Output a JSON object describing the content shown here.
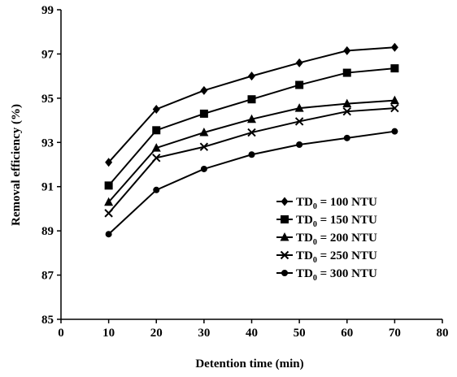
{
  "chart_data": {
    "type": "line",
    "xlabel": "Detention time (min)",
    "ylabel": "Removal efficiency (%)",
    "xlim": [
      0,
      80
    ],
    "ylim": [
      85,
      99
    ],
    "xticks": [
      "0",
      "10",
      "20",
      "30",
      "40",
      "50",
      "60",
      "70",
      "80"
    ],
    "yticks": [
      "85",
      "87",
      "89",
      "91",
      "93",
      "95",
      "97",
      "99"
    ],
    "grid": false,
    "legend_position": "bottom-right",
    "x": [
      10,
      20,
      30,
      40,
      50,
      60,
      70
    ],
    "series": [
      {
        "name": "TD",
        "sub": "0",
        "suffix": " = 100 NTU",
        "marker": "diamond",
        "values": [
          92.1,
          94.5,
          95.35,
          96.0,
          96.6,
          97.15,
          97.3
        ]
      },
      {
        "name": "TD",
        "sub": "0",
        "suffix": " = 150 NTU",
        "marker": "square",
        "values": [
          91.05,
          93.55,
          94.3,
          94.95,
          95.6,
          96.15,
          96.35
        ]
      },
      {
        "name": "TD",
        "sub": "0",
        "suffix": " = 200 NTU",
        "marker": "triangle",
        "values": [
          90.3,
          92.75,
          93.45,
          94.05,
          94.55,
          94.75,
          94.9
        ]
      },
      {
        "name": "TD",
        "sub": "0",
        "suffix": " = 250 NTU",
        "marker": "cross",
        "values": [
          89.8,
          92.3,
          92.8,
          93.45,
          93.95,
          94.4,
          94.55
        ]
      },
      {
        "name": "TD",
        "sub": "0",
        "suffix": " = 300 NTU",
        "marker": "circle",
        "values": [
          88.85,
          90.85,
          91.8,
          92.45,
          92.9,
          93.2,
          93.5
        ]
      }
    ]
  }
}
